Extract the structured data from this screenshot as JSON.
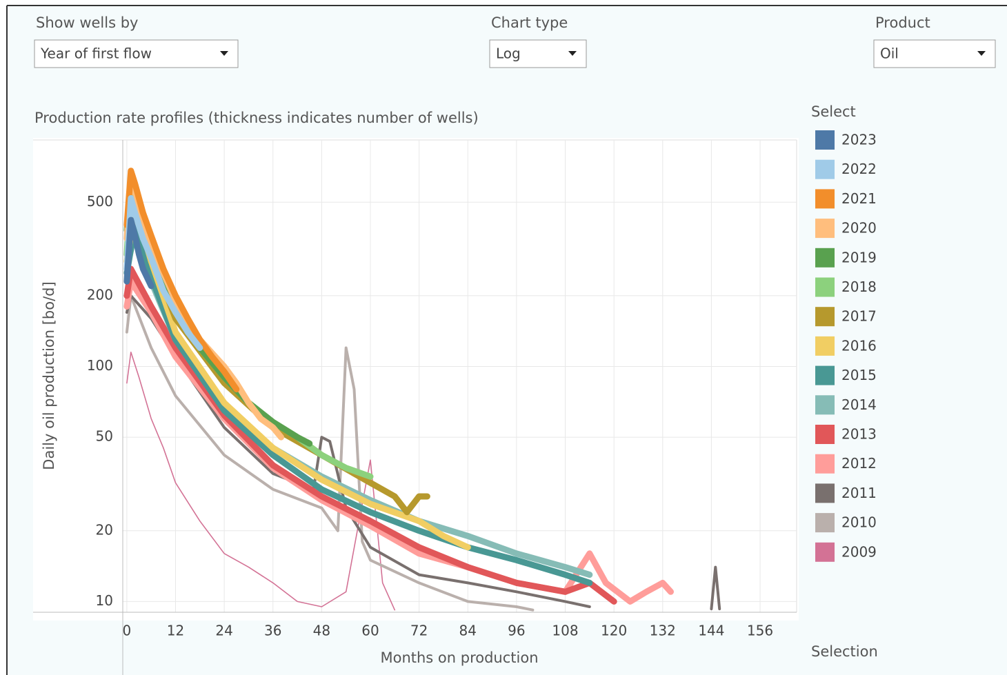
{
  "controls": [
    {
      "label": "Show wells by",
      "value": "Year of first flow"
    },
    {
      "label": "Chart type",
      "value": "Log"
    },
    {
      "label": "Product",
      "value": "Oil"
    }
  ],
  "legend_title": "Select",
  "selection_title": "Selection",
  "chart_data": {
    "type": "line",
    "title": "Production rate profiles (thickness indicates number of wells)",
    "x_label": "Months on production",
    "y_label": "Daily oil production [bo/d]",
    "log_y": true,
    "grid": true,
    "xlim": [
      -1,
      165
    ],
    "xticks": [
      0,
      12,
      24,
      36,
      48,
      60,
      72,
      84,
      96,
      108,
      120,
      132,
      144,
      156
    ],
    "ylim": [
      9,
      920
    ],
    "yticks": [
      10,
      20,
      50,
      100,
      200,
      500
    ],
    "series": [
      {
        "name": "2023",
        "color": "#4e79a7",
        "x": [
          0,
          1,
          2,
          3,
          4,
          6
        ],
        "values": [
          230,
          420,
          360,
          300,
          260,
          220
        ]
      },
      {
        "name": "2022",
        "color": "#a0cbe8",
        "x": [
          0,
          1,
          2,
          4,
          6,
          9,
          12,
          15,
          18
        ],
        "values": [
          260,
          520,
          450,
          350,
          290,
          210,
          170,
          140,
          120
        ]
      },
      {
        "name": "2021",
        "color": "#f28e2b",
        "x": [
          0,
          1,
          2,
          4,
          6,
          9,
          12,
          15,
          18,
          21,
          24,
          27
        ],
        "values": [
          400,
          680,
          600,
          450,
          360,
          260,
          200,
          160,
          130,
          110,
          95,
          80
        ]
      },
      {
        "name": "2020",
        "color": "#ffbe7d",
        "x": [
          0,
          1,
          2,
          4,
          6,
          9,
          12,
          18,
          24,
          27,
          30,
          33,
          36,
          38
        ],
        "values": [
          350,
          650,
          560,
          420,
          330,
          250,
          190,
          130,
          100,
          85,
          70,
          60,
          55,
          50
        ]
      },
      {
        "name": "2019",
        "color": "#59a14f",
        "x": [
          0,
          1,
          2,
          4,
          6,
          9,
          12,
          18,
          24,
          30,
          36,
          42,
          45
        ],
        "values": [
          380,
          660,
          580,
          430,
          330,
          240,
          180,
          120,
          90,
          70,
          58,
          50,
          47
        ]
      },
      {
        "name": "2018",
        "color": "#8cd17d",
        "x": [
          0,
          1,
          2,
          6,
          12,
          18,
          24,
          30,
          36,
          42,
          48,
          54,
          60
        ],
        "values": [
          300,
          600,
          520,
          320,
          170,
          120,
          90,
          70,
          58,
          50,
          42,
          37,
          34
        ]
      },
      {
        "name": "2017",
        "color": "#b6992d",
        "x": [
          0,
          2,
          6,
          12,
          24,
          36,
          48,
          60,
          66,
          69,
          72,
          74
        ],
        "values": [
          300,
          520,
          300,
          160,
          85,
          55,
          42,
          32,
          28,
          24,
          28,
          28
        ]
      },
      {
        "name": "2016",
        "color": "#f1ce63",
        "x": [
          0,
          2,
          6,
          12,
          24,
          36,
          48,
          60,
          72,
          78,
          84
        ],
        "values": [
          280,
          480,
          280,
          140,
          70,
          45,
          33,
          26,
          22,
          19,
          17
        ]
      },
      {
        "name": "2015",
        "color": "#499894",
        "x": [
          0,
          2,
          6,
          12,
          24,
          36,
          48,
          60,
          72,
          84,
          96,
          108,
          114
        ],
        "values": [
          250,
          400,
          240,
          130,
          65,
          42,
          30,
          24,
          20,
          17,
          15,
          13,
          12
        ]
      },
      {
        "name": "2014",
        "color": "#86bcb6",
        "x": [
          0,
          2,
          6,
          12,
          24,
          36,
          48,
          60,
          72,
          84,
          96,
          108,
          114
        ],
        "values": [
          260,
          380,
          230,
          130,
          68,
          45,
          34,
          27,
          22,
          19,
          16,
          14,
          13
        ]
      },
      {
        "name": "2013",
        "color": "#e15759",
        "x": [
          0,
          1,
          6,
          12,
          24,
          36,
          48,
          60,
          72,
          84,
          96,
          108,
          114,
          120
        ],
        "values": [
          200,
          260,
          180,
          120,
          62,
          38,
          28,
          22,
          17,
          14,
          12,
          11,
          12,
          10
        ]
      },
      {
        "name": "2012",
        "color": "#ff9d9a",
        "x": [
          0,
          1,
          6,
          12,
          24,
          36,
          48,
          60,
          72,
          84,
          96,
          108,
          114,
          118,
          124,
          128,
          132,
          134
        ],
        "values": [
          180,
          230,
          170,
          110,
          60,
          37,
          27,
          21,
          16,
          14,
          12,
          11,
          16,
          12,
          10,
          11,
          12,
          11
        ]
      },
      {
        "name": "2011",
        "color": "#79706e",
        "x": [
          0,
          1,
          6,
          12,
          24,
          36,
          46,
          48,
          50,
          54,
          60,
          72,
          84,
          96,
          108,
          114,
          130,
          144,
          145,
          146
        ],
        "values": [
          170,
          200,
          160,
          110,
          55,
          35,
          30,
          50,
          48,
          25,
          17,
          13,
          12,
          11,
          10,
          9.5,
          null,
          9.3,
          14,
          9.3
        ]
      },
      {
        "name": "2010",
        "color": "#bab0ac",
        "x": [
          0,
          1,
          6,
          12,
          24,
          36,
          48,
          52,
          54,
          56,
          58,
          60,
          72,
          84,
          96,
          100
        ],
        "values": [
          140,
          200,
          120,
          75,
          42,
          30,
          25,
          20,
          120,
          80,
          18,
          15,
          12,
          10,
          9.5,
          9.2
        ]
      },
      {
        "name": "2009",
        "color": "#d37295",
        "x": [
          0,
          1,
          3,
          6,
          9,
          12,
          18,
          24,
          30,
          36,
          42,
          48,
          54,
          60,
          63,
          66
        ],
        "values": [
          85,
          115,
          90,
          60,
          45,
          32,
          22,
          16,
          14,
          12,
          10,
          9.5,
          11,
          40,
          12,
          9.2
        ]
      }
    ]
  }
}
